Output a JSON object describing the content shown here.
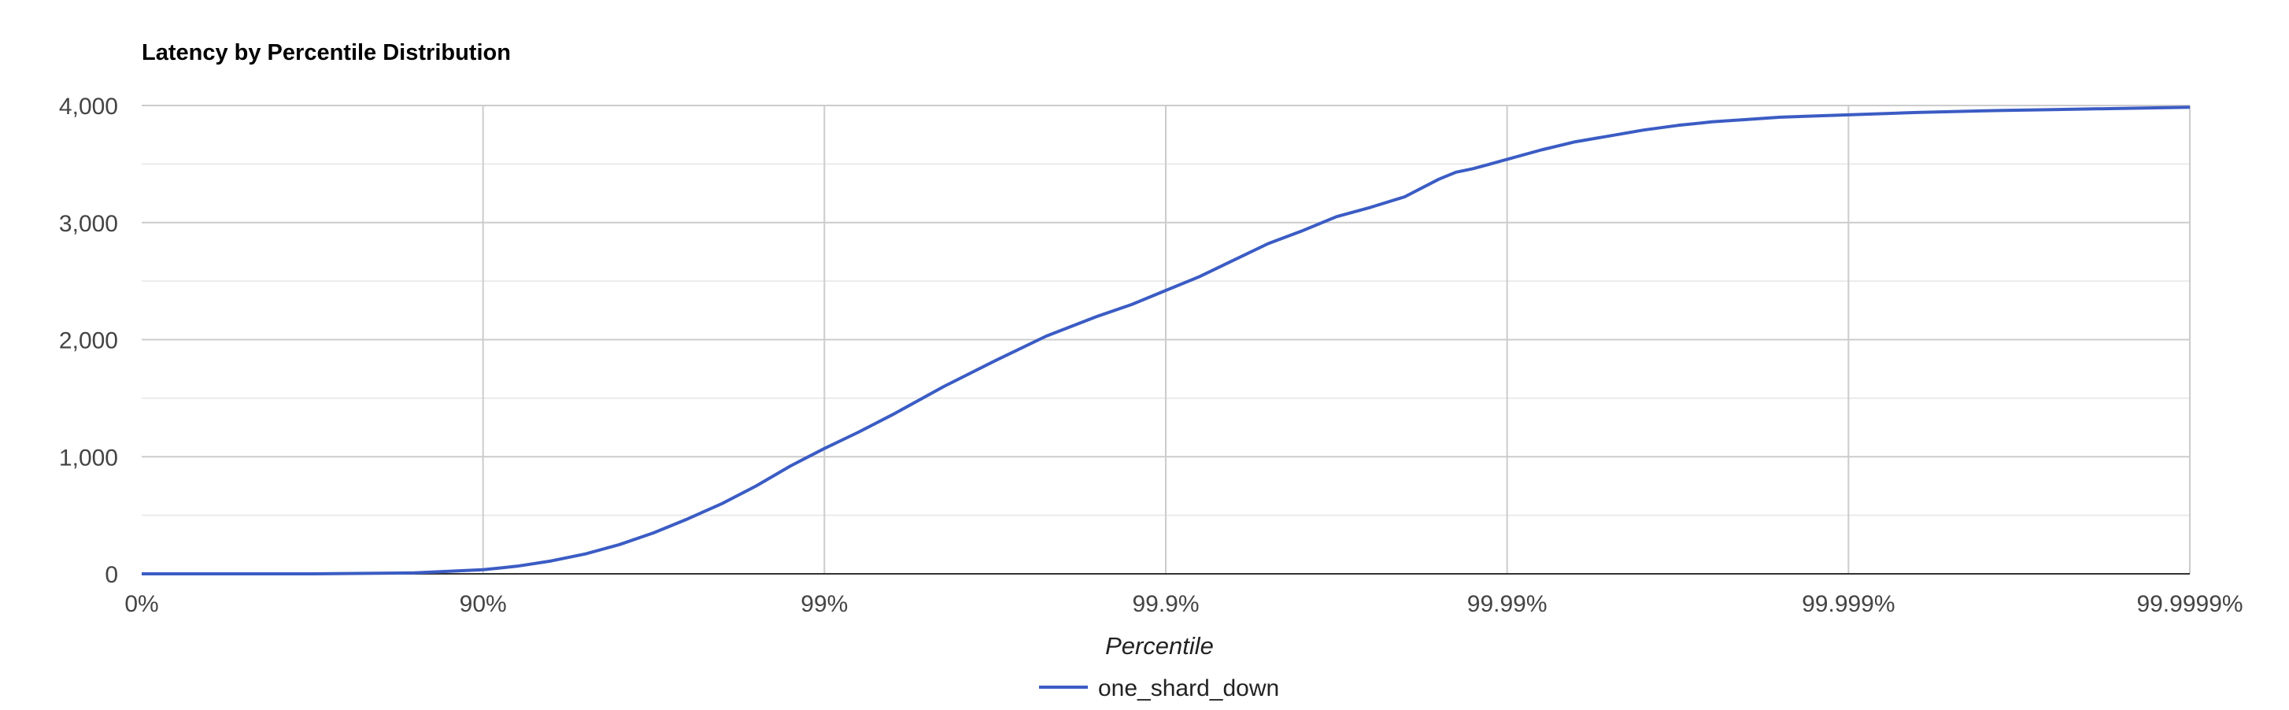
{
  "chart_data": {
    "type": "line",
    "title": "Latency by Percentile Distribution",
    "xlabel": "Percentile",
    "ylabel": "",
    "x_scale": "log-percentile",
    "x_ticks": [
      "0%",
      "90%",
      "99%",
      "99.9%",
      "99.99%",
      "99.999%",
      "99.9999%"
    ],
    "y_ticks": [
      "0",
      "1,000",
      "2,000",
      "3,000",
      "4,000"
    ],
    "xlim": [
      0,
      6
    ],
    "ylim": [
      0,
      4000
    ],
    "grid": true,
    "legend_position": "bottom",
    "series": [
      {
        "name": "one_shard_down",
        "color": "#3b5cc4",
        "x_nines": [
          0,
          0.5,
          0.8,
          1.0,
          1.1,
          1.2,
          1.3,
          1.4,
          1.5,
          1.6,
          1.7,
          1.8,
          1.9,
          2.0,
          2.1,
          2.2,
          2.35,
          2.5,
          2.65,
          2.8,
          2.9,
          3.0,
          3.1,
          3.2,
          3.3,
          3.4,
          3.5,
          3.6,
          3.7,
          3.8,
          3.85,
          3.9,
          3.95,
          4.0,
          4.1,
          4.2,
          4.3,
          4.4,
          4.5,
          4.6,
          4.7,
          4.8,
          5.0,
          5.2,
          5.4,
          5.6,
          5.8,
          6.0
        ],
        "values": [
          0,
          0,
          8,
          35,
          65,
          110,
          170,
          250,
          350,
          470,
          600,
          750,
          920,
          1070,
          1210,
          1360,
          1600,
          1820,
          2030,
          2200,
          2300,
          2420,
          2540,
          2680,
          2820,
          2930,
          3050,
          3130,
          3220,
          3370,
          3430,
          3460,
          3500,
          3540,
          3620,
          3690,
          3740,
          3790,
          3830,
          3860,
          3880,
          3900,
          3920,
          3940,
          3955,
          3965,
          3975,
          3985
        ]
      }
    ]
  }
}
